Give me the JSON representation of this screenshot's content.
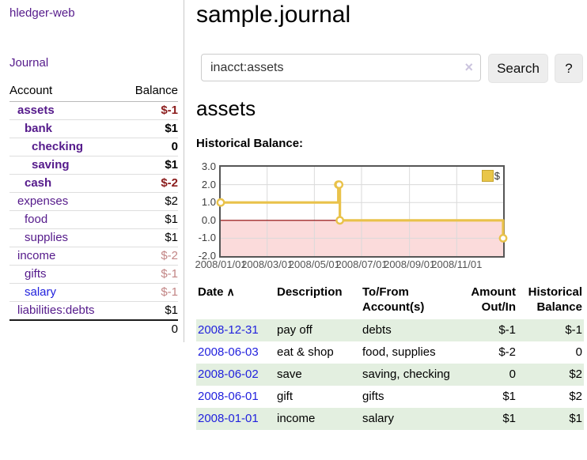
{
  "app": {
    "brand": "hledger-web"
  },
  "colors": {
    "link_purple": "#551a8b",
    "link_blue": "#2222dd",
    "negative_strong": "#8b1c1c",
    "negative_soft": "#c28585",
    "row_stripe_green": "#e3efe0",
    "series_gold": "#e9c24a",
    "negative_region_pink": "#fbdbdb",
    "zero_line_red": "#8b0000"
  },
  "sidebar": {
    "journal_link": "Journal",
    "accounts_table": {
      "headers": {
        "account": "Account",
        "balance": "Balance"
      },
      "rows": [
        {
          "name": "assets",
          "indent": 1,
          "bold": true,
          "balance": "$-1",
          "neg": "strong"
        },
        {
          "name": "bank",
          "indent": 2,
          "bold": true,
          "balance": "$1"
        },
        {
          "name": "checking",
          "indent": 3,
          "bold": true,
          "balance": "0"
        },
        {
          "name": "saving",
          "indent": 3,
          "bold": true,
          "balance": "$1"
        },
        {
          "name": "cash",
          "indent": 2,
          "bold": true,
          "balance": "$-2",
          "neg": "strong"
        },
        {
          "name": "expenses",
          "indent": 1,
          "bold": false,
          "balance": "$2"
        },
        {
          "name": "food",
          "indent": 2,
          "bold": false,
          "balance": "$1"
        },
        {
          "name": "supplies",
          "indent": 2,
          "bold": false,
          "balance": "$1"
        },
        {
          "name": "income",
          "indent": 1,
          "bold": false,
          "balance": "$-2",
          "neg": "soft"
        },
        {
          "name": "gifts",
          "indent": 2,
          "bold": false,
          "balance": "$-1",
          "neg": "soft"
        },
        {
          "name": "salary",
          "indent": 2,
          "bold": false,
          "balance": "$-1",
          "neg": "soft",
          "link_blue": true
        },
        {
          "name": "liabilities:debts",
          "indent": 1,
          "bold": false,
          "balance": "$1"
        }
      ],
      "total": "0"
    }
  },
  "header": {
    "title": "sample.journal"
  },
  "search": {
    "value": "inacct:assets",
    "clear_icon": "×",
    "button_label": "Search",
    "help_label": "?"
  },
  "account_view": {
    "heading": "assets",
    "chart_title": "Historical Balance:"
  },
  "chart_data": {
    "type": "line",
    "style": "step",
    "title": "Historical Balance:",
    "series": [
      {
        "name": "$",
        "color": "#e9c24a",
        "points": [
          [
            "2008-01-01",
            1
          ],
          [
            "2008-06-01",
            2
          ],
          [
            "2008-06-02",
            2
          ],
          [
            "2008-06-03",
            0
          ],
          [
            "2008-12-31",
            -1
          ]
        ]
      }
    ],
    "xlim": [
      "2008-01-01",
      "2008-12-31"
    ],
    "ylim": [
      -2,
      3
    ],
    "y_ticks": [
      3.0,
      2.0,
      1.0,
      0.0,
      -1.0,
      -2.0
    ],
    "x_tick_labels": [
      "2008/01/01",
      "2008/03/01",
      "2008/05/01",
      "2008/07/01",
      "2008/09/01",
      "2008/11/01"
    ],
    "grid": true,
    "legend": {
      "label": "$",
      "position": "top-right"
    },
    "negative_region_fill": "#fbdbdb",
    "zero_line_color": "#8b0000"
  },
  "register_table": {
    "headers": {
      "date": "Date",
      "sort_icon": "∧",
      "description": "Description",
      "accounts": "To/From Account(s)",
      "amount": "Amount Out/In",
      "balance": "Historical Balance"
    },
    "rows": [
      {
        "date": "2008-12-31",
        "description": "pay off",
        "accounts": "debts",
        "amount": "$-1",
        "amount_neg": true,
        "balance": "$-1",
        "balance_neg": true
      },
      {
        "date": "2008-06-03",
        "description": "eat & shop",
        "accounts": "food, supplies",
        "amount": "$-2",
        "amount_neg": true,
        "balance": "0",
        "balance_neg": false
      },
      {
        "date": "2008-06-02",
        "description": "save",
        "accounts": "saving, checking",
        "amount": "0",
        "amount_neg": false,
        "balance": "$2",
        "balance_neg": false
      },
      {
        "date": "2008-06-01",
        "description": "gift",
        "accounts": "gifts",
        "amount": "$1",
        "amount_neg": false,
        "balance": "$2",
        "balance_neg": false
      },
      {
        "date": "2008-01-01",
        "description": "income",
        "accounts": "salary",
        "amount": "$1",
        "amount_neg": false,
        "balance": "$1",
        "balance_neg": false
      }
    ]
  }
}
